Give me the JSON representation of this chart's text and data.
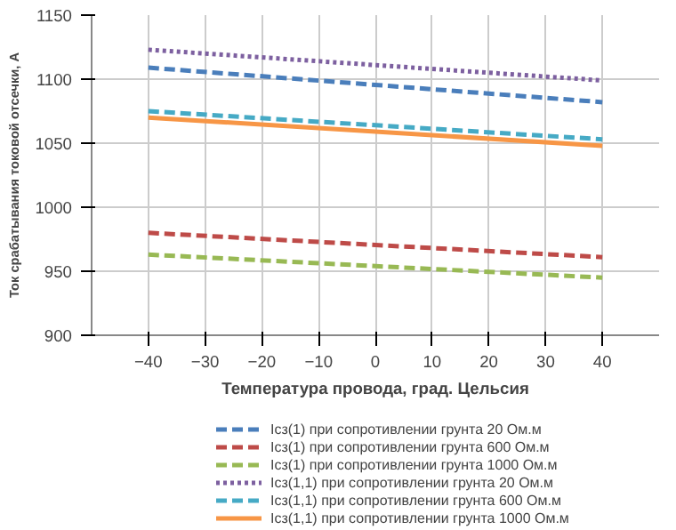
{
  "chart_data": {
    "type": "line",
    "xlabel": "Температура провода, град. Цельсия",
    "ylabel": "Ток срабатывания токовой отсечки, А",
    "x": [
      -40,
      40
    ],
    "xlim": [
      -50,
      50
    ],
    "xticks": [
      -40,
      -30,
      -20,
      -10,
      0,
      10,
      20,
      30,
      40
    ],
    "ylim": [
      900,
      1150
    ],
    "yticks": [
      900,
      950,
      1000,
      1050,
      1100,
      1150
    ],
    "grid": true,
    "legend": "bottom",
    "series": [
      {
        "name": "Icз(1) при сопротивлении грунта 20 Ом.м",
        "color": "#4a7ebb",
        "line_style": "dashed",
        "values": [
          1109,
          1082
        ]
      },
      {
        "name": "Icз(1) при сопротивлении грунта 600 Ом.м",
        "color": "#be4b48",
        "line_style": "dashed",
        "values": [
          980,
          961
        ]
      },
      {
        "name": "Icз(1) при сопротивлении грунта 1000 Ом.м",
        "color": "#98b954",
        "line_style": "dashed",
        "values": [
          963,
          945
        ]
      },
      {
        "name": "Icз(1,1) при сопротивлении грунта 20 Ом.м",
        "color": "#7d60a0",
        "line_style": "dotted",
        "values": [
          1123,
          1099
        ]
      },
      {
        "name": "Icз(1,1) при сопротивлении грунта 600 Ом.м",
        "color": "#46aac5",
        "line_style": "dashed",
        "values": [
          1075,
          1053
        ]
      },
      {
        "name": "Icз(1,1) при сопротивлении грунта 1000 Ом.м",
        "color": "#f79646",
        "line_style": "solid",
        "values": [
          1070,
          1048
        ]
      }
    ]
  }
}
